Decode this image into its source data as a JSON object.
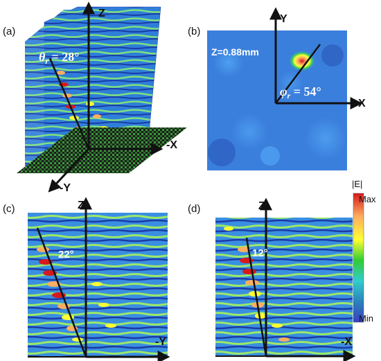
{
  "panels": {
    "a": {
      "label": "(a)",
      "axis_z": "Z",
      "axis_x": "-X",
      "axis_y": "-Y",
      "angle_symbol": "θ",
      "angle_sub": "r",
      "angle_value": " = 28°"
    },
    "b": {
      "label": "(b)",
      "axis_y": "Y",
      "axis_x": "X",
      "z_text": "Z=0.88mm",
      "angle_symbol": "φ",
      "angle_sub": "r",
      "angle_value": " = 54°"
    },
    "c": {
      "label": "(c)",
      "axis_z": "Z",
      "axis_y": "-Y",
      "angle": "22°"
    },
    "d": {
      "label": "(d)",
      "axis_z": "Z",
      "axis_x": "-X",
      "angle": "12°"
    }
  },
  "colorbar": {
    "title": "|E|",
    "max_label": "Max",
    "min_label": "Min",
    "colors": [
      "#d7191c",
      "#fdae61",
      "#ffff33",
      "#33cc33",
      "#33cccc",
      "#2b83ba",
      "#3a3fbf"
    ]
  }
}
